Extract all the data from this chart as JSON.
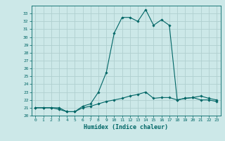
{
  "xlabel": "Humidex (Indice chaleur)",
  "background_color": "#cce8e8",
  "grid_color": "#b0d0d0",
  "line_color": "#006666",
  "x_values": [
    0,
    1,
    2,
    3,
    4,
    5,
    6,
    7,
    8,
    9,
    10,
    11,
    12,
    13,
    14,
    15,
    16,
    17,
    18,
    19,
    20,
    21,
    22,
    23
  ],
  "line1_y": [
    21.0,
    21.0,
    21.0,
    21.0,
    20.5,
    20.5,
    21.2,
    21.5,
    23.0,
    25.5,
    30.5,
    32.5,
    32.5,
    32.0,
    33.5,
    31.5,
    32.2,
    31.5,
    22.0,
    22.2,
    22.3,
    22.5,
    22.2,
    22.0
  ],
  "line2_y": [
    21.0,
    21.0,
    21.0,
    20.8,
    20.5,
    20.5,
    21.0,
    21.2,
    21.5,
    21.8,
    22.0,
    22.2,
    22.5,
    22.7,
    23.0,
    22.2,
    22.3,
    22.3,
    22.0,
    22.2,
    22.3,
    22.0,
    22.0,
    21.8
  ],
  "ylim": [
    20,
    34
  ],
  "xlim": [
    -0.5,
    23.5
  ],
  "yticks": [
    20,
    21,
    22,
    23,
    24,
    25,
    26,
    27,
    28,
    29,
    30,
    31,
    32,
    33
  ],
  "xticks": [
    0,
    1,
    2,
    3,
    4,
    5,
    6,
    7,
    8,
    9,
    10,
    11,
    12,
    13,
    14,
    15,
    16,
    17,
    18,
    19,
    20,
    21,
    22,
    23
  ]
}
